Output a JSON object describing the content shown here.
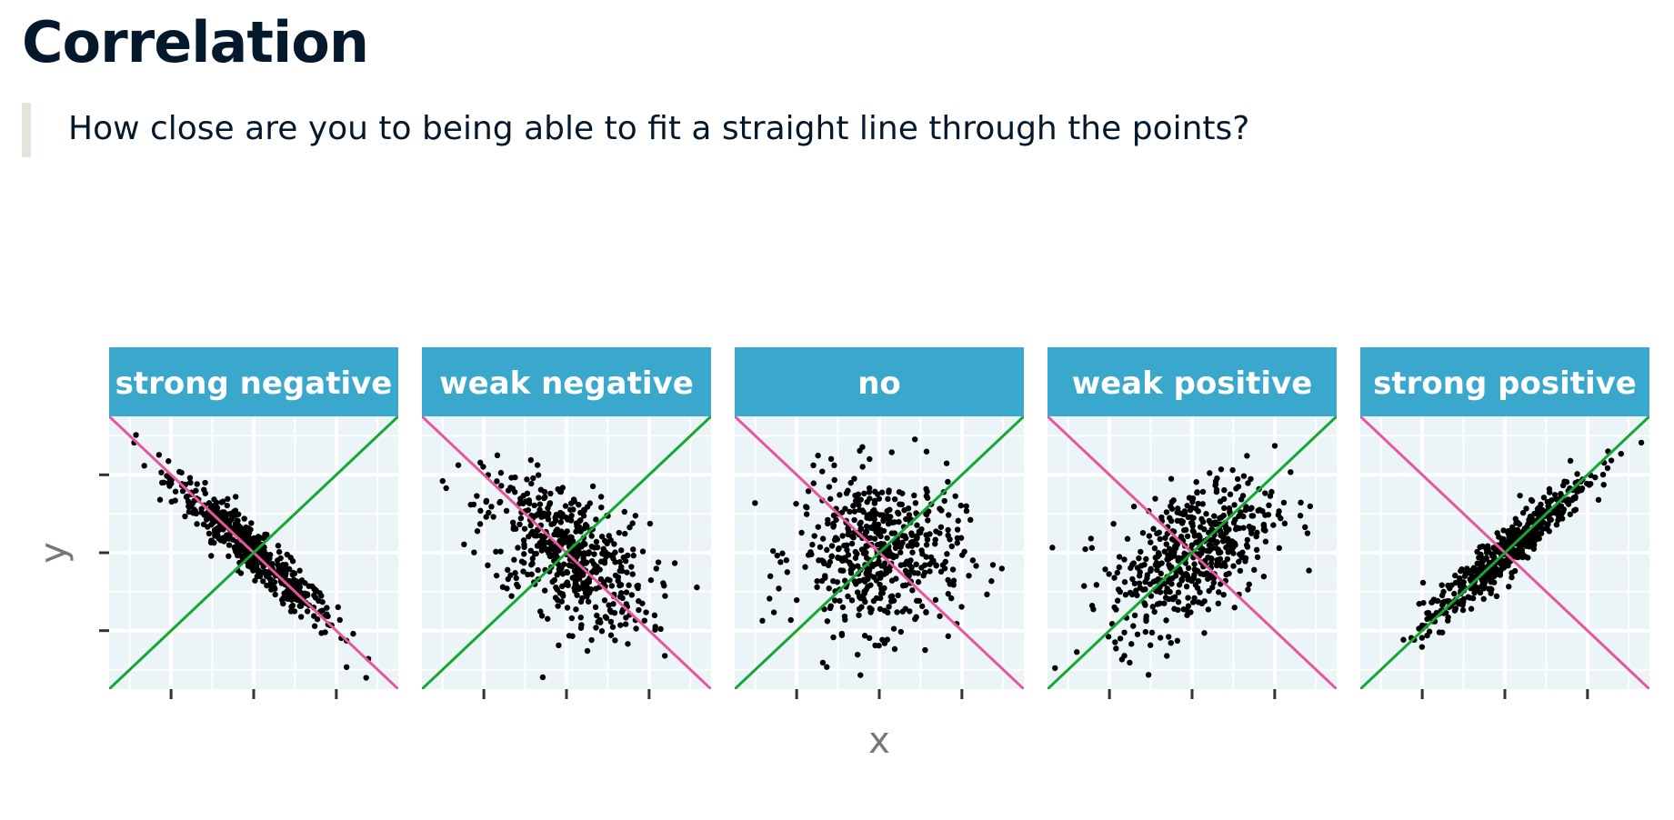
{
  "slide": {
    "title": "Correlation",
    "quote": "How close are you to being able to fit a straight line through the points?"
  },
  "colors": {
    "strip": "#3aa8cc",
    "panel": "#ebf4f7",
    "grid": "#ffffff",
    "points": "#000000",
    "negative_line": "#e8559e",
    "positive_line": "#13a82f",
    "axis_text": "#777777"
  },
  "chart_data": {
    "type": "scatter",
    "xlabel": "x",
    "ylabel": "y",
    "grid": true,
    "shared_axes": true,
    "xlim": [
      -3.5,
      3.5
    ],
    "ylim": [
      -3.5,
      3.5
    ],
    "x_ticks": [
      -2,
      0,
      2
    ],
    "y_ticks": [
      -2,
      0,
      2
    ],
    "tick_labels_shown": false,
    "reference_lines": [
      {
        "color_key": "negative_line",
        "slope": -1,
        "intercept": 0
      },
      {
        "color_key": "positive_line",
        "slope": 1,
        "intercept": 0
      }
    ],
    "panels": [
      {
        "name": "strong negative",
        "correlation": -0.95,
        "n": 500
      },
      {
        "name": "weak negative",
        "correlation": -0.5,
        "n": 500
      },
      {
        "name": "no",
        "correlation": 0,
        "n": 500
      },
      {
        "name": "weak positive",
        "correlation": 0.5,
        "n": 500
      },
      {
        "name": "strong positive",
        "correlation": 0.95,
        "n": 500
      }
    ]
  }
}
